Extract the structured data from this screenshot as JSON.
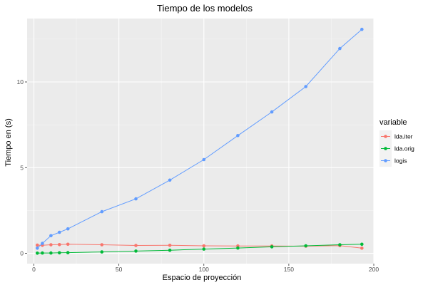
{
  "chart_data": {
    "type": "line",
    "title": "Tiempo de los modelos",
    "xlabel": "Espacio de proyección",
    "ylabel": "Tiempo en (s)",
    "xlim": [
      -4,
      200
    ],
    "ylim": [
      -0.6,
      13.7
    ],
    "x_ticks": [
      0,
      50,
      100,
      150,
      200
    ],
    "y_ticks": [
      0,
      5,
      10
    ],
    "grid": true,
    "legend": {
      "title": "variable",
      "position": "right"
    },
    "series": [
      {
        "name": "lda.iter",
        "color": "#F8766D",
        "points": [
          [
            2,
            0.48
          ],
          [
            5,
            0.47
          ],
          [
            10,
            0.5
          ],
          [
            15,
            0.51
          ],
          [
            20,
            0.53
          ],
          [
            40,
            0.5
          ],
          [
            60,
            0.46
          ],
          [
            80,
            0.47
          ],
          [
            100,
            0.44
          ],
          [
            120,
            0.43
          ],
          [
            140,
            0.43
          ],
          [
            160,
            0.42
          ],
          [
            180,
            0.45
          ],
          [
            193,
            0.3
          ]
        ]
      },
      {
        "name": "lda.orig",
        "color": "#00BA38",
        "points": [
          [
            2,
            0.01
          ],
          [
            5,
            0.02
          ],
          [
            10,
            0.02
          ],
          [
            15,
            0.03
          ],
          [
            20,
            0.04
          ],
          [
            40,
            0.08
          ],
          [
            60,
            0.13
          ],
          [
            80,
            0.18
          ],
          [
            100,
            0.25
          ],
          [
            120,
            0.31
          ],
          [
            140,
            0.38
          ],
          [
            160,
            0.44
          ],
          [
            180,
            0.5
          ],
          [
            193,
            0.53
          ]
        ]
      },
      {
        "name": "logis",
        "color": "#619CFF",
        "points": [
          [
            2,
            0.3
          ],
          [
            5,
            0.58
          ],
          [
            10,
            1.03
          ],
          [
            15,
            1.23
          ],
          [
            20,
            1.43
          ],
          [
            40,
            2.43
          ],
          [
            60,
            3.18
          ],
          [
            80,
            4.27
          ],
          [
            100,
            5.47
          ],
          [
            120,
            6.87
          ],
          [
            140,
            8.25
          ],
          [
            160,
            9.73
          ],
          [
            180,
            11.95
          ],
          [
            193,
            13.07
          ]
        ]
      }
    ]
  }
}
